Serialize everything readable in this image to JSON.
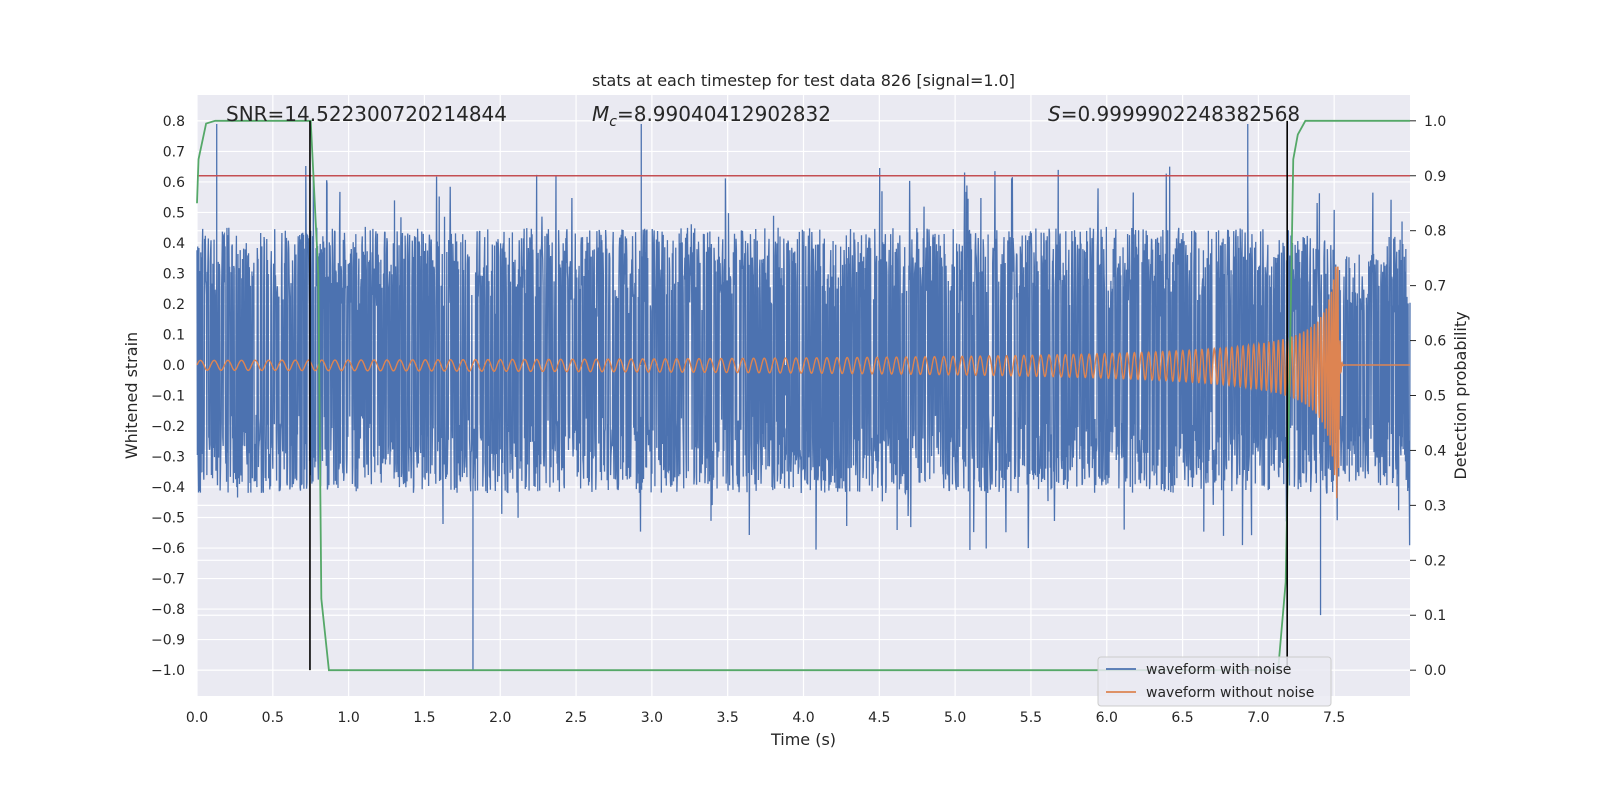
{
  "chart_data": {
    "type": "line",
    "title": "stats at each timestep for test data 826 [signal=1.0]",
    "xlabel": "Time (s)",
    "ylabel_left": "Whitened strain",
    "ylabel_right": "Detection probability",
    "xlim": [
      0.0,
      8.0
    ],
    "ylim_left": [
      -1.085,
      0.885
    ],
    "ylim_right": [
      -0.047,
      1.047
    ],
    "xticks": [
      "0.0",
      "0.5",
      "1.0",
      "1.5",
      "2.0",
      "2.5",
      "3.0",
      "3.5",
      "4.0",
      "4.5",
      "5.0",
      "5.5",
      "6.0",
      "6.5",
      "7.0",
      "7.5"
    ],
    "yticks_left": [
      "0.8",
      "0.7",
      "0.6",
      "0.5",
      "0.4",
      "0.3",
      "0.2",
      "0.1",
      "0.0",
      "−0.1",
      "−0.2",
      "−0.3",
      "−0.4",
      "−0.5",
      "−0.6",
      "−0.7",
      "−0.8",
      "−0.9",
      "−1.0"
    ],
    "yticks_right": [
      "1.0",
      "0.9",
      "0.8",
      "0.7",
      "0.6",
      "0.5",
      "0.4",
      "0.3",
      "0.2",
      "0.1",
      "0.0"
    ],
    "grid": true,
    "legend_position": "lower-right",
    "annotations": {
      "snr": "SNR=14.522300720214844",
      "mc_symbol": "M",
      "mc_sub": "c",
      "mc_value": "=8.99040412902832",
      "s_symbol": "S",
      "s_value": "=0.9999902248382568"
    },
    "series": [
      {
        "name": "waveform with noise",
        "color": "#4c72b0",
        "axis": "left",
        "approx_envelope": {
          "t": [
            0.0,
            7.5,
            7.52,
            8.0
          ],
          "upper": [
            0.45,
            0.45,
            0.35,
            0.45
          ],
          "lower": [
            -0.42,
            -0.42,
            -0.38,
            -0.42
          ]
        },
        "notable_peaks": [
          {
            "t": 0.13,
            "v": 0.79
          },
          {
            "t": 1.82,
            "v": -1.0
          },
          {
            "t": 2.93,
            "v": 0.79
          },
          {
            "t": 6.93,
            "v": 0.79
          },
          {
            "t": 7.41,
            "v": -0.82
          },
          {
            "t": 3.88,
            "v": -0.1
          }
        ]
      },
      {
        "name": "waveform without noise",
        "color": "#dd8452",
        "axis": "left",
        "chirp": {
          "start_t": 0.0,
          "merger_t": 7.53,
          "ringdown_end_t": 7.55,
          "start_amplitude": 0.015,
          "peak_positive": 0.32,
          "peak_negative": -0.44,
          "start_frequency_hz": 11,
          "end_frequency_hz": 70
        }
      },
      {
        "name": "detection probability",
        "color": "#55a868",
        "axis": "right",
        "x": [
          0.0,
          0.01,
          0.06,
          0.12,
          0.5,
          0.75,
          0.8,
          0.82,
          0.87,
          7.13,
          7.18,
          7.21,
          7.23,
          7.26,
          7.31,
          8.0
        ],
        "y": [
          0.85,
          0.93,
          0.995,
          1.0,
          1.0,
          1.0,
          0.72,
          0.13,
          0.0,
          0.0,
          0.16,
          0.6,
          0.93,
          0.975,
          1.0,
          1.0
        ]
      }
    ],
    "threshold_line": {
      "axis": "right",
      "value": 0.9,
      "color": "#c44e52"
    },
    "vertical_lines": [
      {
        "t": 0.745,
        "color": "#000000"
      },
      {
        "t": 7.19,
        "color": "#000000"
      }
    ]
  },
  "style": {
    "axes_background": "#eaeaf2",
    "grid_color": "#ffffff",
    "text_color": "#262626"
  }
}
